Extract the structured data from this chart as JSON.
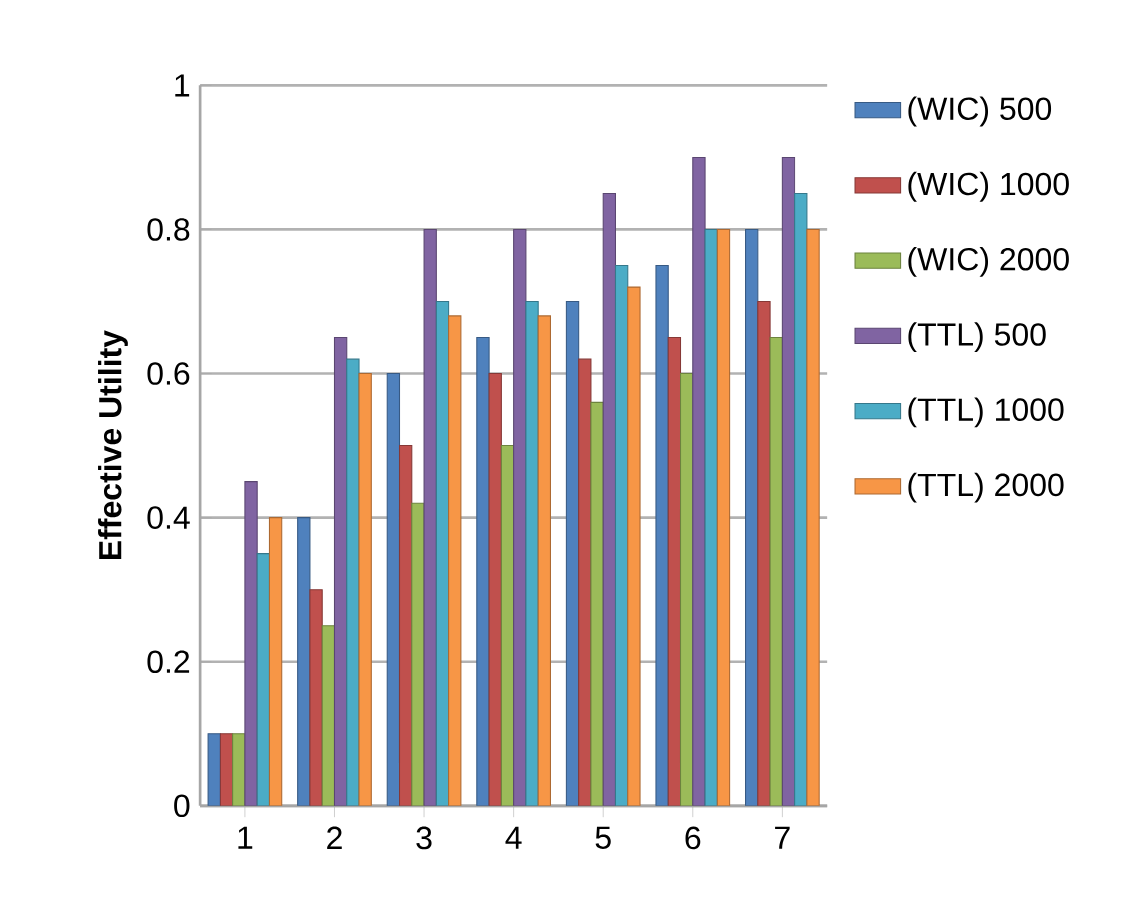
{
  "chart_data": {
    "type": "bar",
    "ylabel": "Effective Utility",
    "categories": [
      "1",
      "2",
      "3",
      "4",
      "5",
      "6",
      "7"
    ],
    "series": [
      {
        "name": "(WIC) 500",
        "color": "#4f81bd",
        "values": [
          0.1,
          0.4,
          0.6,
          0.65,
          0.7,
          0.75,
          0.8
        ]
      },
      {
        "name": "(WIC) 1000",
        "color": "#c0504d",
        "values": [
          0.1,
          0.3,
          0.5,
          0.6,
          0.62,
          0.65,
          0.7
        ]
      },
      {
        "name": "(WIC) 2000",
        "color": "#9bbb59",
        "values": [
          0.1,
          0.25,
          0.42,
          0.5,
          0.56,
          0.6,
          0.65
        ]
      },
      {
        "name": "(TTL) 500",
        "color": "#8064a2",
        "values": [
          0.45,
          0.65,
          0.8,
          0.8,
          0.85,
          0.9,
          0.9
        ]
      },
      {
        "name": "(TTL) 1000",
        "color": "#4bacc6",
        "values": [
          0.35,
          0.62,
          0.7,
          0.7,
          0.75,
          0.8,
          0.85
        ]
      },
      {
        "name": "(TTL) 2000",
        "color": "#f79646",
        "values": [
          0.4,
          0.6,
          0.68,
          0.68,
          0.72,
          0.8,
          0.8
        ]
      }
    ],
    "ylim": [
      0,
      1
    ],
    "yticks": [
      0,
      0.2,
      0.4,
      0.6,
      0.8,
      1
    ],
    "grid": "y",
    "legend": "right"
  }
}
